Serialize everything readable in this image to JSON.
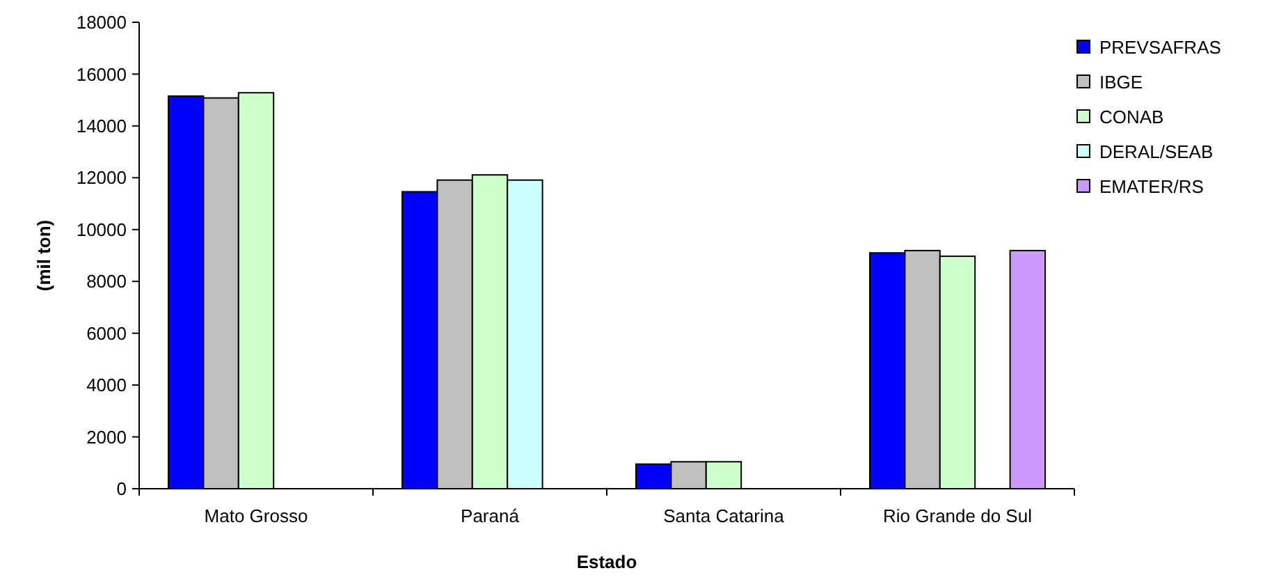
{
  "chart_data": {
    "type": "bar",
    "xlabel": "Estado",
    "ylabel": "(mil ton)",
    "categories": [
      "Mato Grosso",
      "Paraná",
      "Santa Catarina",
      "Rio Grande do Sul"
    ],
    "series": [
      {
        "name": "PREVSAFRAS",
        "color": "#0000ff",
        "values": [
          15150,
          11460,
          950,
          9100
        ]
      },
      {
        "name": "IBGE",
        "color": "#c0c0c0",
        "values": [
          15080,
          11910,
          1040,
          9190
        ]
      },
      {
        "name": "CONAB",
        "color": "#ccffcc",
        "values": [
          15280,
          12110,
          1040,
          8970
        ]
      },
      {
        "name": "DERAL/SEAB",
        "color": "#ccffff",
        "values": [
          null,
          11910,
          null,
          null
        ]
      },
      {
        "name": "EMATER/RS",
        "color": "#cc99ff",
        "values": [
          null,
          null,
          null,
          9190
        ]
      }
    ],
    "ylim": [
      0,
      18000
    ],
    "yticks": [
      0,
      2000,
      4000,
      6000,
      8000,
      10000,
      12000,
      14000,
      16000,
      18000
    ],
    "grid": false,
    "legend": "right"
  }
}
